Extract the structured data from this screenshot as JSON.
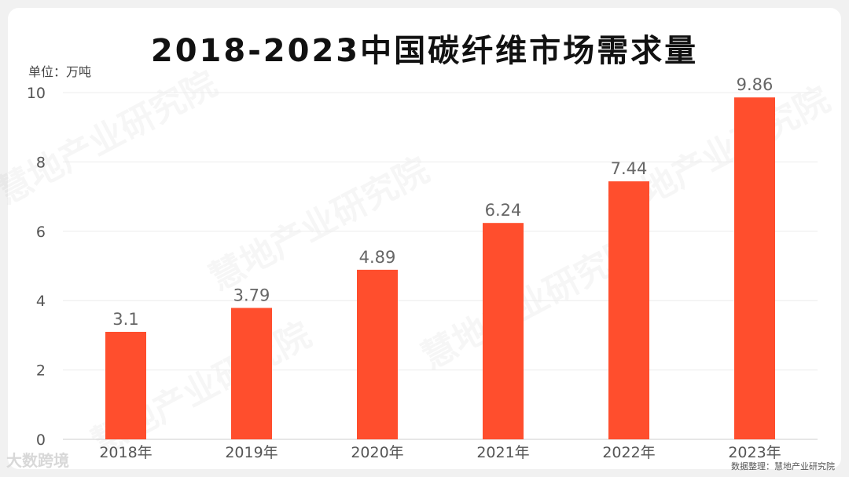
{
  "chart_data": {
    "type": "bar",
    "title": "2018-2023中国碳纤维市场需求量",
    "unit_label": "单位：万吨",
    "categories": [
      "2018年",
      "2019年",
      "2020年",
      "2021年",
      "2022年",
      "2023年"
    ],
    "values": [
      3.1,
      3.79,
      4.89,
      6.24,
      7.44,
      9.86
    ],
    "data_labels": [
      "3.1",
      "3.79",
      "4.89",
      "6.24",
      "7.44",
      "9.86"
    ],
    "yticks": [
      "0",
      "2",
      "4",
      "6",
      "8",
      "10"
    ],
    "ylim": [
      0,
      10
    ],
    "grid": true,
    "bar_color": "#ff4e2d"
  },
  "source_note": "数据整理：慧地产业研究院",
  "logo_text": "大数跨境",
  "watermark_text": "慧地产业研究院"
}
